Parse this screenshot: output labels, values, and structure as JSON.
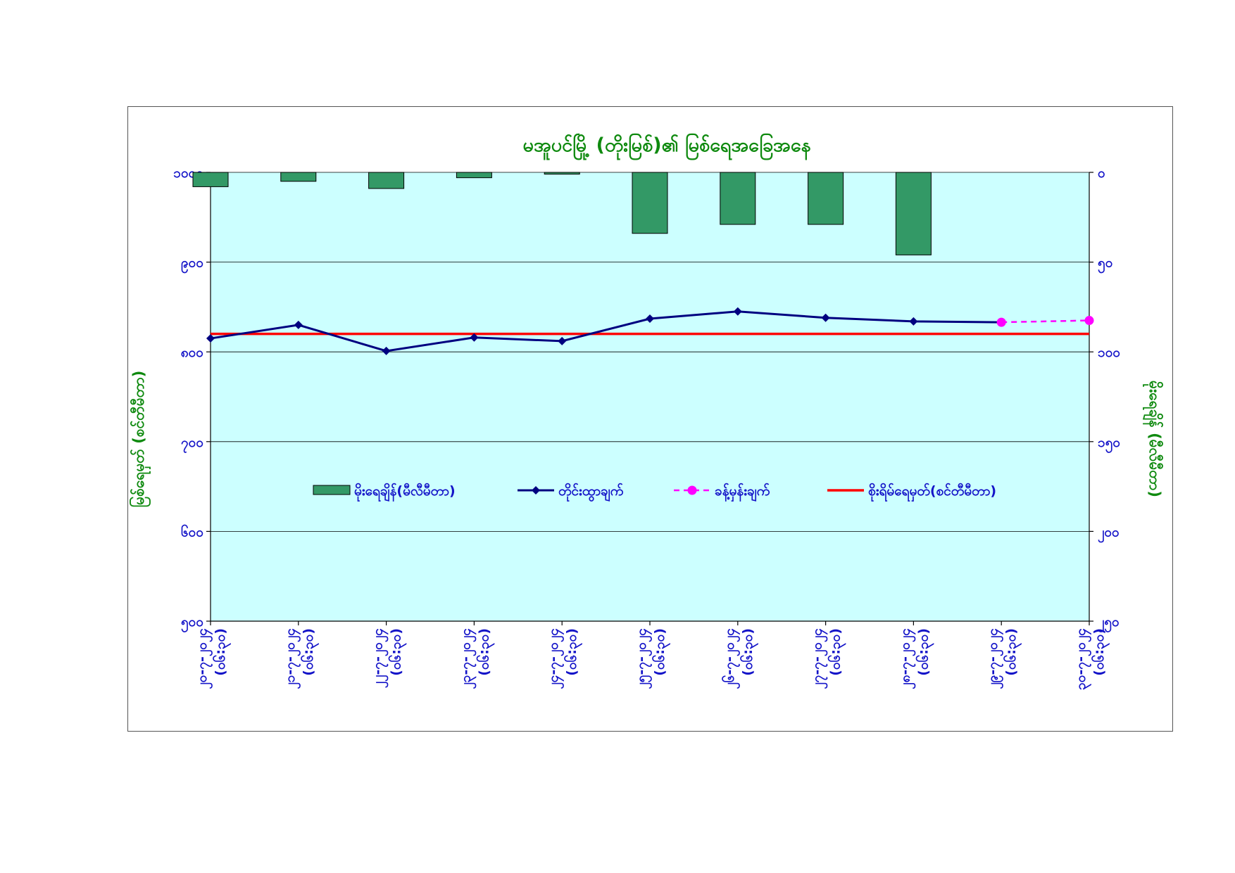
{
  "chart_data": {
    "type": "bar+line",
    "title": "မအူပင်မြို့ (တိုးမြစ်)၏ မြစ်ရေအခြေအနေ",
    "ylabel_left": "မြစ်ရေမှတ် (စင်တီမီတာ)",
    "ylabel_right": "မိုးရေချိန် (မီလီမီတာ)",
    "left_axis": {
      "min": 500,
      "max": 1000,
      "ticks": [
        "၁၀၀၀",
        "၉၀၀",
        "၈၀၀",
        "၇၀၀",
        "၆၀၀",
        "၅၀၀"
      ],
      "tick_values": [
        1000,
        900,
        800,
        700,
        600,
        500
      ]
    },
    "right_axis": {
      "min": 0,
      "max": 250,
      "inverted": true,
      "ticks": [
        "၀",
        "၅၀",
        "၁၀၀",
        "၁၅၀",
        "၂၀၀",
        "၂၅၀"
      ],
      "tick_values": [
        0,
        50,
        100,
        150,
        200,
        250
      ]
    },
    "categories": [
      [
        "၂၀-၇-၂၀၂၄",
        "(၀၆:၃၀)"
      ],
      [
        "၂၁-၇-၂၀၂၄",
        "(၀၆:၃၀)"
      ],
      [
        "၂၂-၇-၂၀၂၄",
        "(၀၆:၃၀)"
      ],
      [
        "၂၃-၇-၂၀၂၄",
        "(၀၆:၃၀)"
      ],
      [
        "၂၄-၇-၂၀၂၄",
        "(၀၆:၃၀)"
      ],
      [
        "၂၅-၇-၂၀၂၄",
        "(၀၆:၃၀)"
      ],
      [
        "၂၆-၇-၂၀၂၄",
        "(၀၆:၃၀)"
      ],
      [
        "၂၇-၇-၂၀၂၄",
        "(၀၆:၃၀)"
      ],
      [
        "၂၈-၇-၂၀၂၄",
        "(၀၆:၃၀)"
      ],
      [
        "၂၉-၇-၂၀၂၄",
        "(၀၆:၃၀)"
      ],
      [
        "၃၀-၇-၂၀၂၄",
        "(၀၆:၃၀)"
      ]
    ],
    "series": [
      {
        "name": "မိုးရေချိန်(မီလီမီတာ)",
        "type": "bar",
        "axis": "right",
        "color": "#339966",
        "values": [
          8,
          5,
          9,
          3,
          1,
          34,
          29,
          29,
          46,
          null,
          null
        ]
      },
      {
        "name": "တိုင်းထွာချက်",
        "type": "line",
        "axis": "left",
        "color": "#000080",
        "marker": "diamond",
        "values": [
          815,
          830,
          801,
          816,
          812,
          837,
          845,
          838,
          834,
          833,
          null
        ]
      },
      {
        "name": "ခန့်မှန်းချက်",
        "type": "line-dashed",
        "axis": "left",
        "color": "#ff00ff",
        "marker": "circle",
        "values": [
          null,
          null,
          null,
          null,
          null,
          null,
          null,
          null,
          null,
          833,
          835
        ]
      },
      {
        "name": "စိုးရိမ်ရေမှတ်(စင်တီမီတာ)",
        "type": "hline",
        "axis": "left",
        "color": "#ff0000",
        "value": 820
      }
    ],
    "grid": true,
    "plot_background": "#ccffff",
    "legend_position": "inside-center"
  }
}
